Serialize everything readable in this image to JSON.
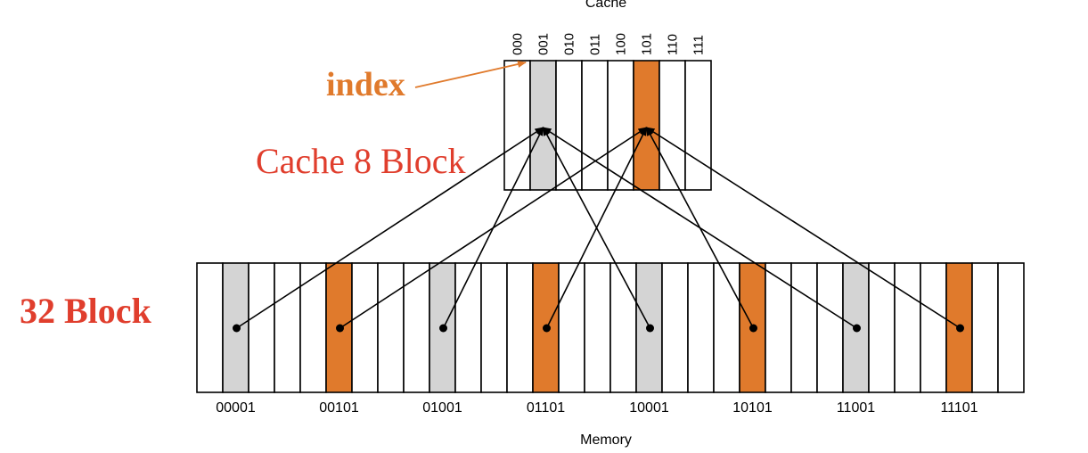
{
  "cache": {
    "title": "Cache",
    "index_labels": [
      "000",
      "001",
      "010",
      "011",
      "100",
      "101",
      "110",
      "111"
    ],
    "highlighted": [
      {
        "index": 1,
        "kind": "gray"
      },
      {
        "index": 5,
        "kind": "orange"
      }
    ]
  },
  "memory": {
    "title": "Memory",
    "block_count": 32,
    "address_labels": [
      "00001",
      "00101",
      "01001",
      "01101",
      "10001",
      "10101",
      "11001",
      "11101"
    ],
    "highlighted": [
      {
        "block": 1,
        "kind": "gray",
        "maps_to": 1
      },
      {
        "block": 5,
        "kind": "orange",
        "maps_to": 5
      },
      {
        "block": 9,
        "kind": "gray",
        "maps_to": 1
      },
      {
        "block": 13,
        "kind": "orange",
        "maps_to": 5
      },
      {
        "block": 17,
        "kind": "gray",
        "maps_to": 1
      },
      {
        "block": 21,
        "kind": "orange",
        "maps_to": 5
      },
      {
        "block": 25,
        "kind": "gray",
        "maps_to": 1
      },
      {
        "block": 29,
        "kind": "orange",
        "maps_to": 5
      }
    ]
  },
  "annotations": {
    "index_label": "index",
    "cache_blocks_label": "Cache 8 Block",
    "memory_blocks_label": "32 Block"
  },
  "colors": {
    "gray": "#d4d4d4",
    "orange": "#e07a2c",
    "index_text": "#e07a2c",
    "red_text": "#e03e2d",
    "stroke": "#000000"
  }
}
